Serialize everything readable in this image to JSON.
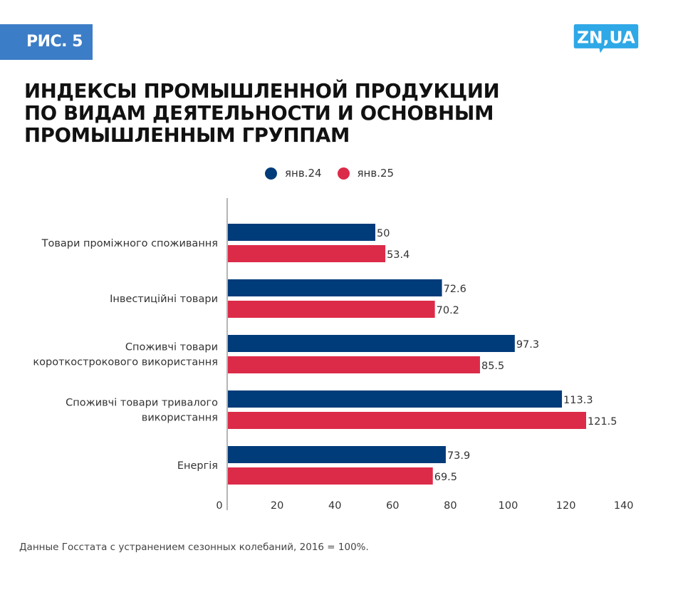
{
  "badge": {
    "label": "РИС. 5",
    "color": "#3c7dc7"
  },
  "logo": {
    "text": "ZN,UA",
    "color": "#2ea8e6"
  },
  "title": {
    "lines": [
      "ИНДЕКСЫ ПРОМЫШЛЕННОЙ ПРОДУКЦИИ",
      "ПО ВИДАМ ДЕЯТЕЛЬНОСТИ И ОСНОВНЫМ",
      "ПРОМЫШЛЕННЫМ ГРУППАМ"
    ]
  },
  "footnote": "Данные Госстата с устранением сезонных колебаний, 2016 = 100%.",
  "chart_data": {
    "type": "bar",
    "orientation": "horizontal",
    "title": "ИНДЕКСЫ ПРОМЫШЛЕННОЙ ПРОДУКЦИИ ПО ВИДАМ ДЕЯТЕЛЬНОСТИ И ОСНОВНЫМ ПРОМЫШЛЕННЫМ ГРУППАМ",
    "categories": [
      [
        "Товари проміжного споживання"
      ],
      [
        "Інвестиційні товари"
      ],
      [
        "Споживчі товари",
        "короткострокового використання"
      ],
      [
        "Споживчі товари тривалого",
        "використання"
      ],
      [
        "Енергія"
      ]
    ],
    "series": [
      {
        "name": "янв.24",
        "color": "#003b7a",
        "values": [
          50,
          72.6,
          97.3,
          113.3,
          73.9
        ],
        "labels": [
          "50",
          "72.6",
          "97.3",
          "113.3",
          "73.9"
        ]
      },
      {
        "name": "янв.25",
        "color": "#dc2b48",
        "values": [
          53.4,
          70.2,
          85.5,
          121.5,
          69.5
        ],
        "labels": [
          "53.4",
          "70.2",
          "85.5",
          "121.5",
          "69.5"
        ]
      }
    ],
    "xticks": [
      "0",
      "20",
      "40",
      "60",
      "80",
      "100",
      "120",
      "140"
    ],
    "xlim": [
      0,
      140
    ],
    "legend": "top-center",
    "grid": false,
    "xlabel": "",
    "ylabel": ""
  }
}
